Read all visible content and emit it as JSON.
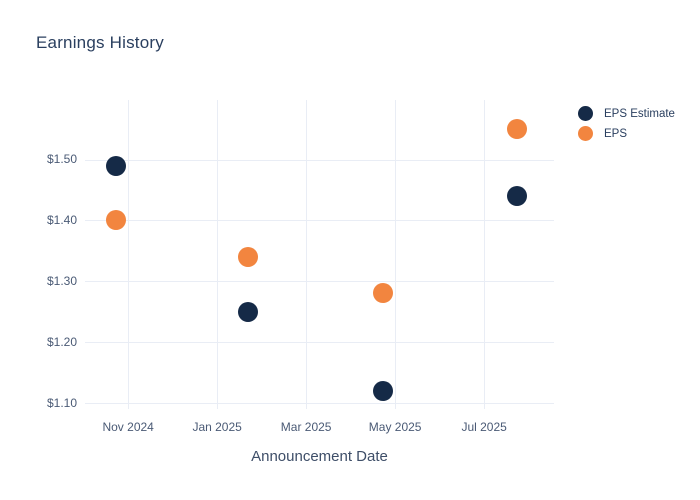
{
  "chart_data": {
    "type": "scatter",
    "title": "Earnings History",
    "xlabel": "Announcement Date",
    "grid": true,
    "legend_position": "right-top",
    "x_unit": "months since 2024-10-01 (estimated from gridlines)",
    "x_range": [
      0.03,
      10.57
    ],
    "y_range": [
      1.1,
      1.598
    ],
    "x_ticks": [
      {
        "value": 1,
        "label": "Nov 2024"
      },
      {
        "value": 3,
        "label": "Jan 2025"
      },
      {
        "value": 5,
        "label": "Mar 2025"
      },
      {
        "value": 7,
        "label": "May 2025"
      },
      {
        "value": 9,
        "label": "Jul 2025"
      }
    ],
    "y_ticks": [
      {
        "value": 1.1,
        "label": "$1.10"
      },
      {
        "value": 1.2,
        "label": "$1.20"
      },
      {
        "value": 1.3,
        "label": "$1.30"
      },
      {
        "value": 1.4,
        "label": "$1.40"
      },
      {
        "value": 1.5,
        "label": "$1.50"
      }
    ],
    "series": [
      {
        "name": "EPS Estimate",
        "color": "#152a47",
        "marker_size": 20,
        "points": [
          {
            "x": 0.73,
            "y": 1.49
          },
          {
            "x": 3.7,
            "y": 1.25
          },
          {
            "x": 6.73,
            "y": 1.12
          },
          {
            "x": 9.73,
            "y": 1.44
          }
        ]
      },
      {
        "name": "EPS",
        "color": "#f2853f",
        "marker_size": 20,
        "points": [
          {
            "x": 0.73,
            "y": 1.4
          },
          {
            "x": 3.7,
            "y": 1.34
          },
          {
            "x": 6.73,
            "y": 1.28
          },
          {
            "x": 9.73,
            "y": 1.55
          }
        ]
      }
    ],
    "colors": {
      "background": "#ffffff",
      "grid": "#e9edf5",
      "title_text": "#2a3f5f",
      "tick_label_text": "#4a5a75",
      "axis_title_text": "#3e4e68",
      "legend_text": "#2a3f5f"
    }
  }
}
